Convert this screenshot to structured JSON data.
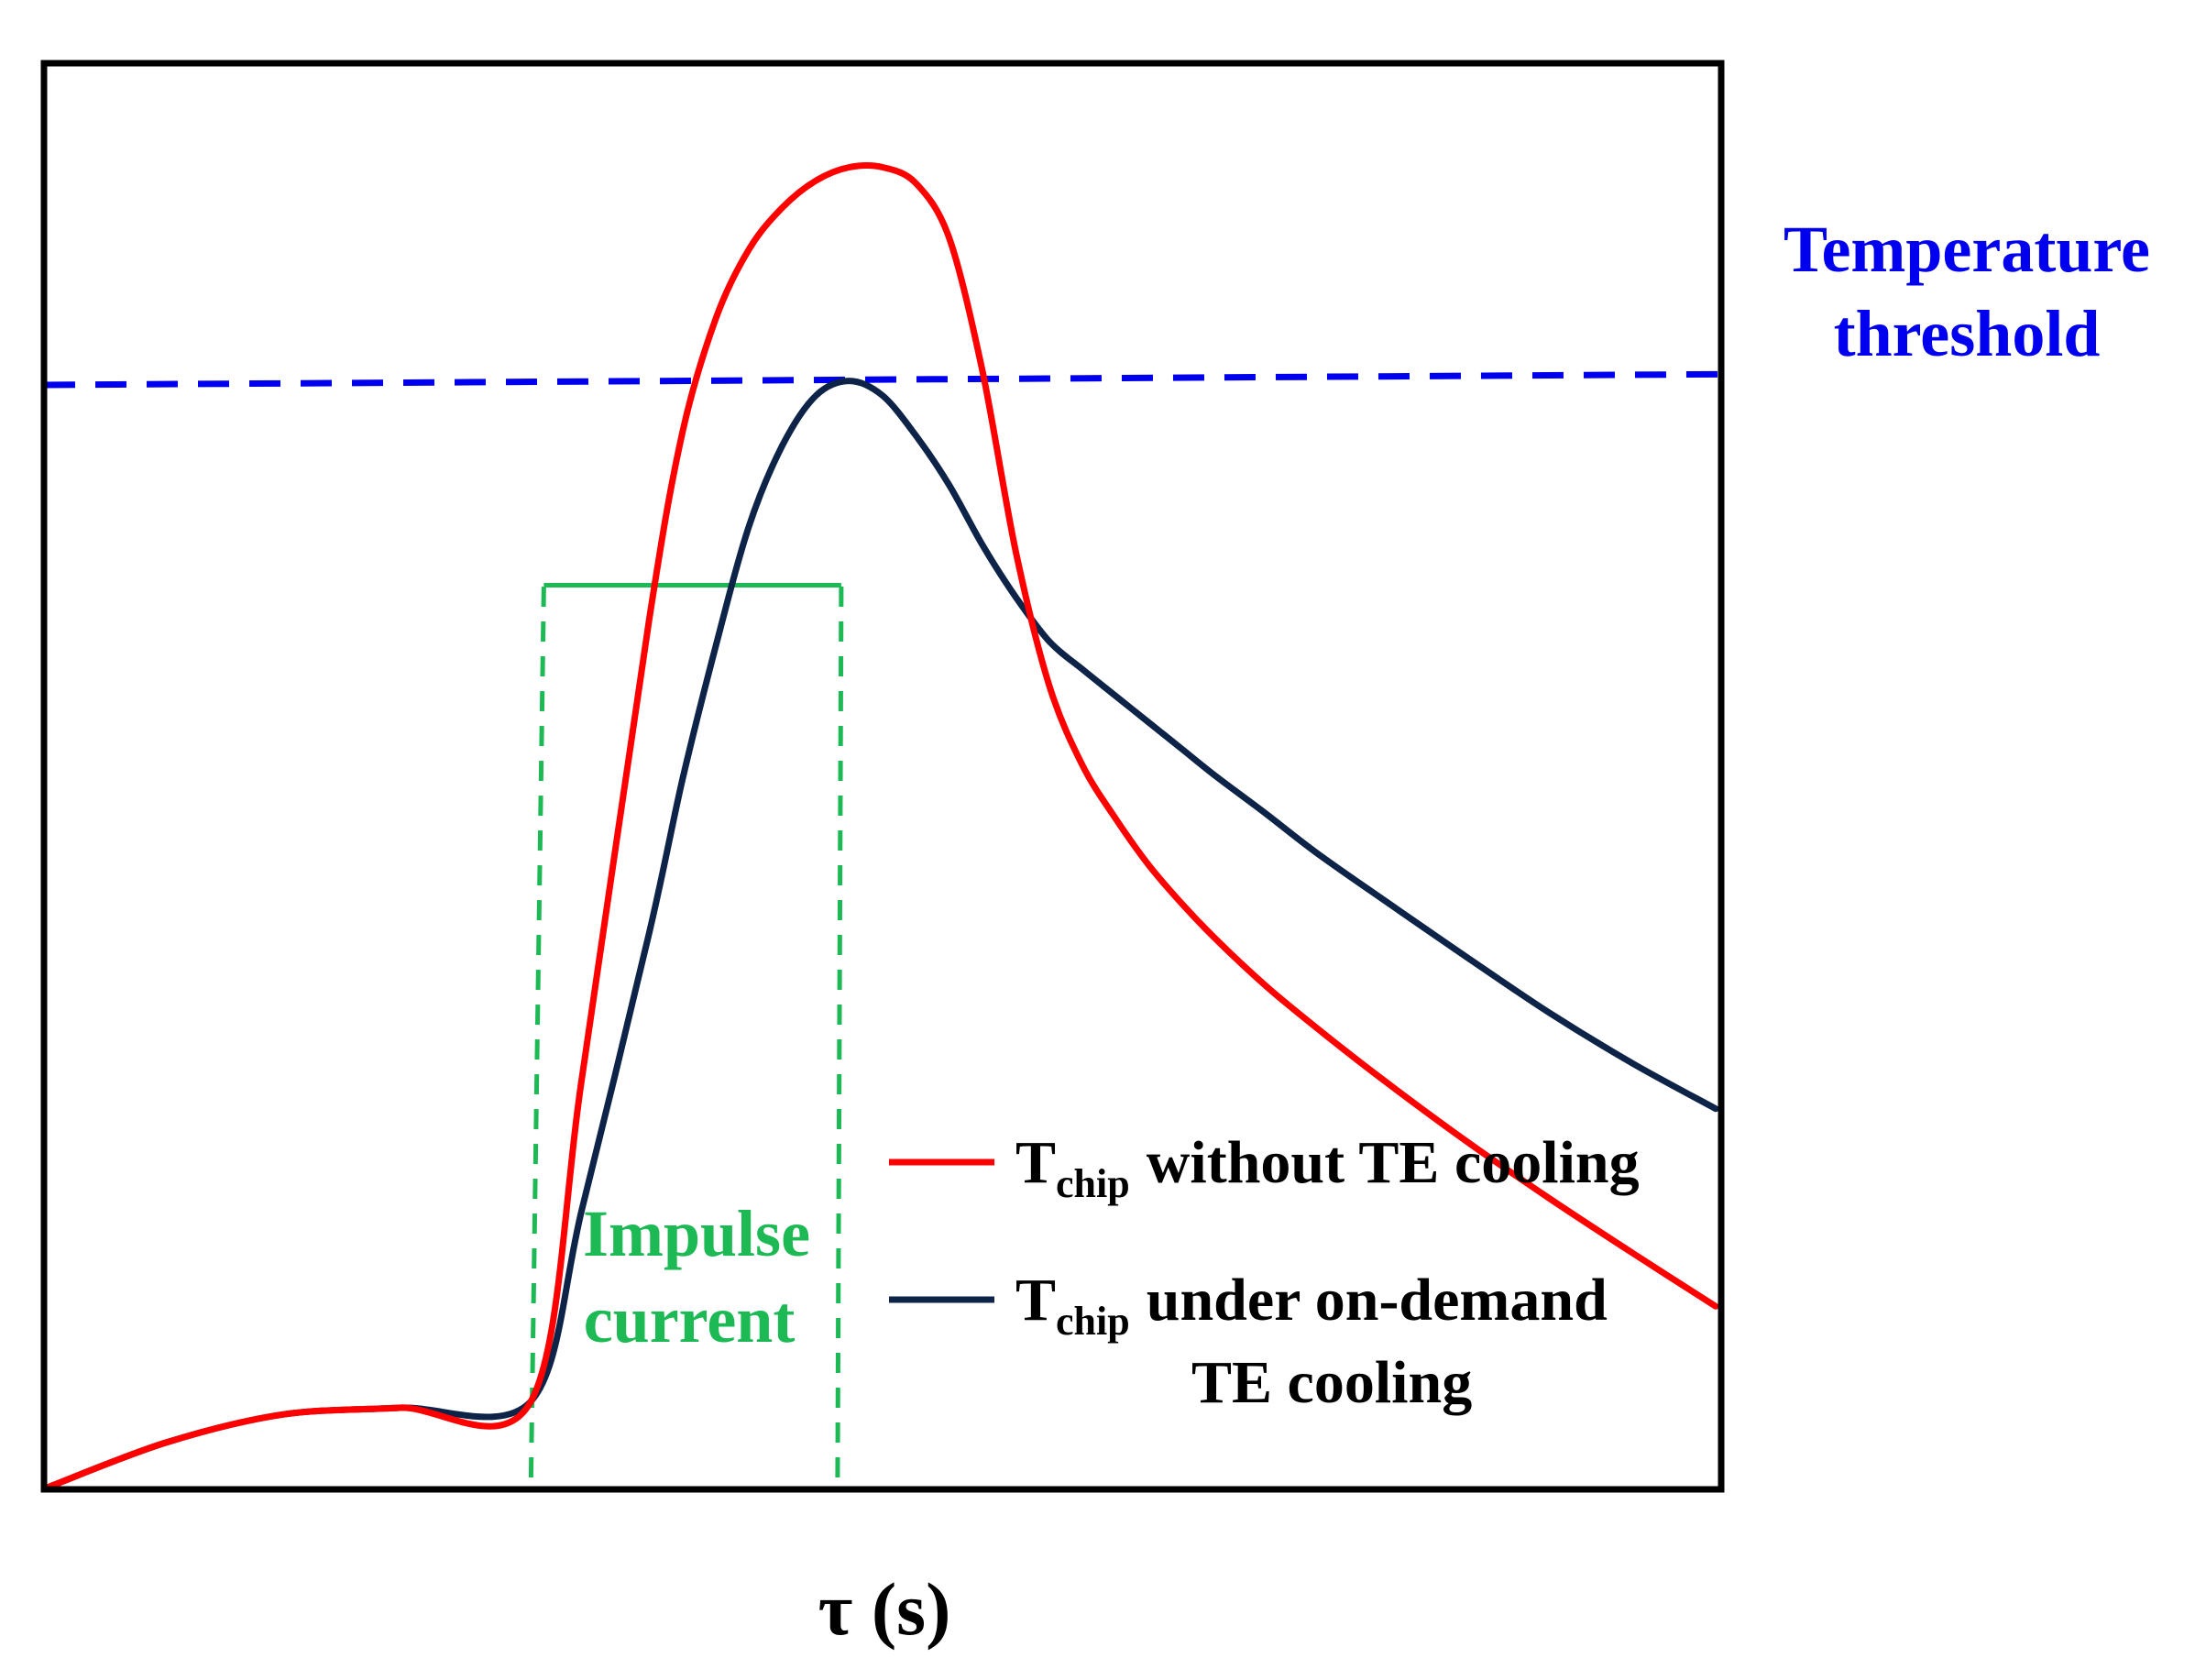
{
  "chart_data": {
    "type": "line",
    "title": "",
    "xlabel": "τ (s)",
    "ylabel": "",
    "xlim": [
      0,
      100
    ],
    "ylim": [
      0,
      100
    ],
    "grid": false,
    "colors": {
      "without": "#ff0000",
      "with": "#0d2347",
      "threshold": "#0000ee",
      "impulse": "#1db954",
      "axes": "#000000"
    },
    "series": [
      {
        "name": "Tchip without TE cooling",
        "key": "without",
        "x": [
          0,
          7,
          14,
          21,
          28.9,
          32,
          36,
          38,
          40,
          42,
          44,
          46,
          48,
          50,
          52,
          54,
          56,
          58,
          60,
          62,
          64,
          66,
          68,
          70,
          73,
          76,
          80,
          85,
          90,
          95,
          100
        ],
        "y": [
          0,
          3.3,
          5.4,
          5.9,
          6.4,
          31,
          65,
          79,
          87.5,
          92.7,
          95.8,
          97.8,
          98.8,
          98.8,
          97.6,
          93.5,
          83.5,
          70,
          60,
          54,
          50,
          46.5,
          43.6,
          41,
          37.5,
          34.4,
          30.5,
          25.9,
          21.6,
          17.5,
          13.5
        ]
      },
      {
        "name": "Tchip under on-demand TE cooling",
        "key": "with",
        "x": [
          0,
          7,
          14,
          21,
          28.9,
          32,
          36,
          38,
          40,
          42,
          44,
          46,
          48,
          50,
          52,
          54,
          56,
          58,
          60,
          62,
          64,
          66,
          68,
          70,
          73,
          76,
          80,
          85,
          90,
          95,
          100
        ],
        "y": [
          0,
          3.3,
          5.4,
          5.9,
          6.4,
          21,
          41.5,
          53,
          63,
          72,
          78,
          81.7,
          82.8,
          81.7,
          78.7,
          75,
          70.5,
          66.6,
          63.3,
          61.2,
          59.2,
          57.2,
          55.2,
          53.2,
          50.4,
          47.5,
          44,
          39.7,
          35.5,
          31.7,
          28.3
        ]
      }
    ],
    "threshold": {
      "label_line1": "Temperature",
      "label_line2": "threshold",
      "y_start": 82.5,
      "y_end": 83.3
    },
    "impulse": {
      "label_line1": "Impulse",
      "label_line2": "current",
      "x_start": 28.9,
      "x_end": 47.3,
      "level": 67.5
    },
    "legend": {
      "position": "lower-right",
      "entries": [
        {
          "key": "without",
          "symbol": "T",
          "subscript": "chip",
          "text": "without TE cooling",
          "text2": ""
        },
        {
          "key": "with",
          "symbol": "T",
          "subscript": "chip",
          "text": "under on-demand",
          "text2": "TE cooling"
        }
      ]
    }
  }
}
